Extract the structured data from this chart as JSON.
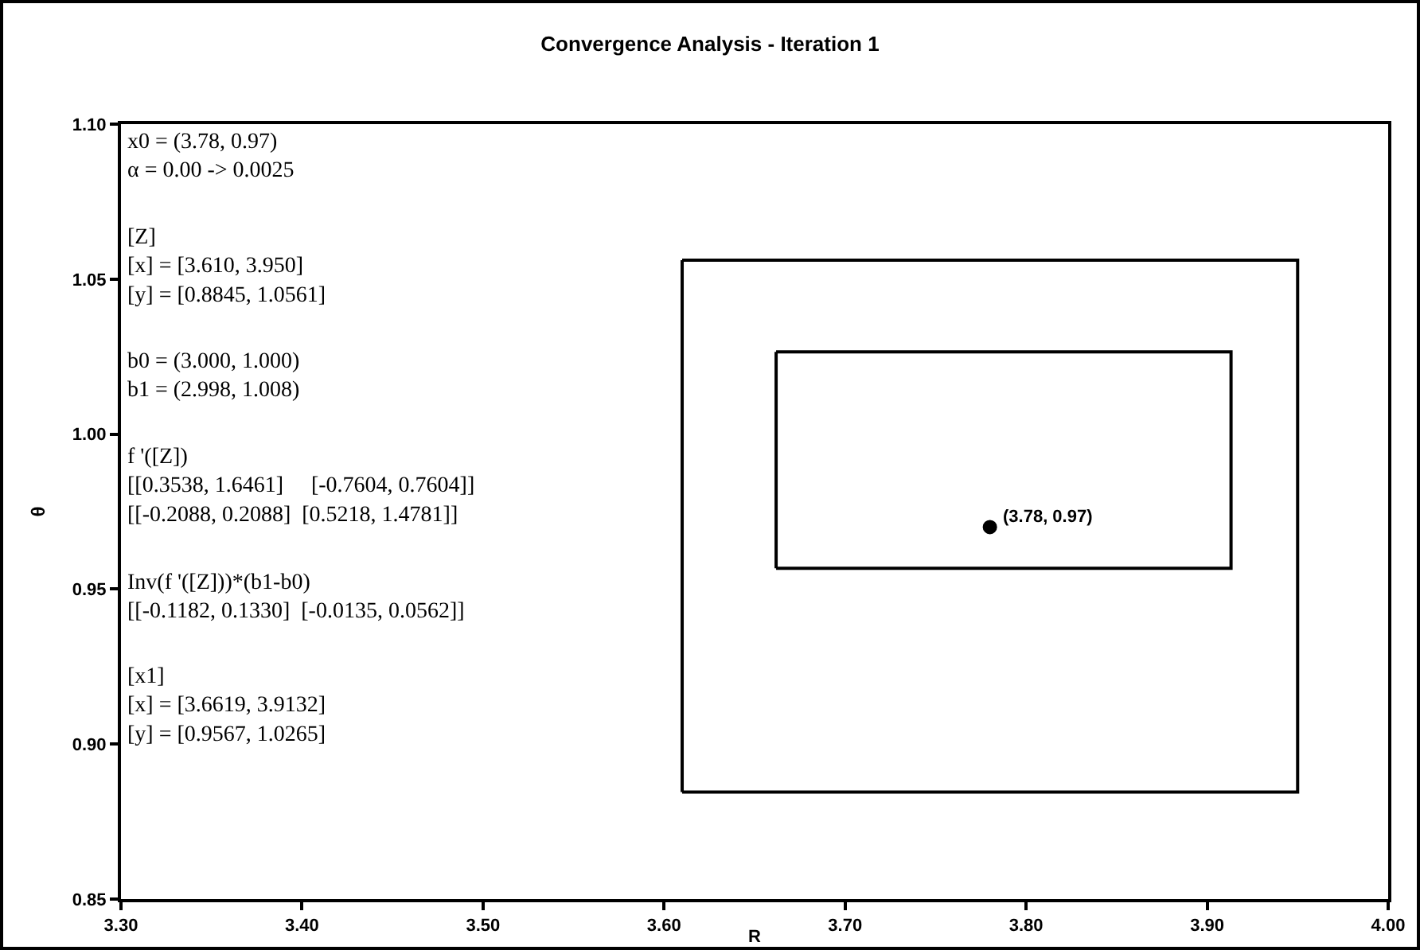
{
  "chart_data": {
    "type": "scatter",
    "title": "Convergence Analysis - Iteration 1",
    "xlabel": "R",
    "ylabel": "θ",
    "xlim": [
      3.3,
      4.0
    ],
    "xticks": [
      {
        "value": 3.3,
        "label": "3.30"
      },
      {
        "value": 3.4,
        "label": "3.40"
      },
      {
        "value": 3.5,
        "label": "3.50"
      },
      {
        "value": 3.6,
        "label": "3.60"
      },
      {
        "value": 3.7,
        "label": "3.70"
      },
      {
        "value": 3.8,
        "label": "3.80"
      },
      {
        "value": 3.9,
        "label": "3.90"
      },
      {
        "value": 4.0,
        "label": "4.00"
      }
    ],
    "ylim": [
      0.85,
      1.1
    ],
    "yticks": [
      {
        "value": 0.85,
        "label": "0.85"
      },
      {
        "value": 0.9,
        "label": "0.90"
      },
      {
        "value": 0.95,
        "label": "0.95"
      },
      {
        "value": 1.0,
        "label": "1.00"
      },
      {
        "value": 1.05,
        "label": "1.05"
      },
      {
        "value": 1.1,
        "label": "1.10"
      }
    ],
    "series": [
      {
        "type": "line",
        "color": "#000000",
        "marker": "none",
        "x": [
          3.61,
          3.95,
          3.95,
          3.61
        ],
        "values": [
          0.8845,
          0.8845,
          1.0561,
          1.0561
        ]
      },
      {
        "type": "line",
        "color": "#000000",
        "marker": "none",
        "x": [
          3.6619,
          3.9132,
          3.9132,
          3.6619
        ],
        "values": [
          0.9567,
          0.9567,
          1.0265,
          1.0265
        ]
      },
      {
        "type": "line",
        "color": "#000000",
        "marker": "none",
        "x": [
          3.61,
          3.61
        ],
        "values": [
          0.8845,
          1.0561
        ]
      },
      {
        "type": "line",
        "color": "#000000",
        "marker": "none",
        "x": [
          3.6619,
          3.6619
        ],
        "values": [
          0.9567,
          1.0265
        ]
      },
      {
        "type": "scatter",
        "color": "#000000",
        "marker": "circle",
        "x": [
          3.78
        ],
        "values": [
          0.97
        ]
      }
    ],
    "annotations": [
      {
        "text": "(3.78, 0.97)",
        "x": 3.78,
        "y": 0.97
      },
      "x0 = (3.78, 0.97)\nα = 0.00 -> 0.0025",
      "[Z]\n[x] = [3.610, 3.950]\n[y] = [0.8845, 1.0561]",
      "b0 = (3.000, 1.000)\nb1 = (2.998, 1.008)",
      "f '([Z])\n[[0.3538, 1.6461]     [-0.7604, 0.7604]]\n[[-0.2088, 0.2088]  [0.5218, 1.4781]]",
      "Inv(f '([Z]))*(b1-b0)\n[[-0.1182, 0.1330]  [-0.0135, 0.0562]]",
      "[x1]\n[x] = [3.6619, 3.9132]\n[y] = [0.9567, 1.0265]"
    ]
  }
}
